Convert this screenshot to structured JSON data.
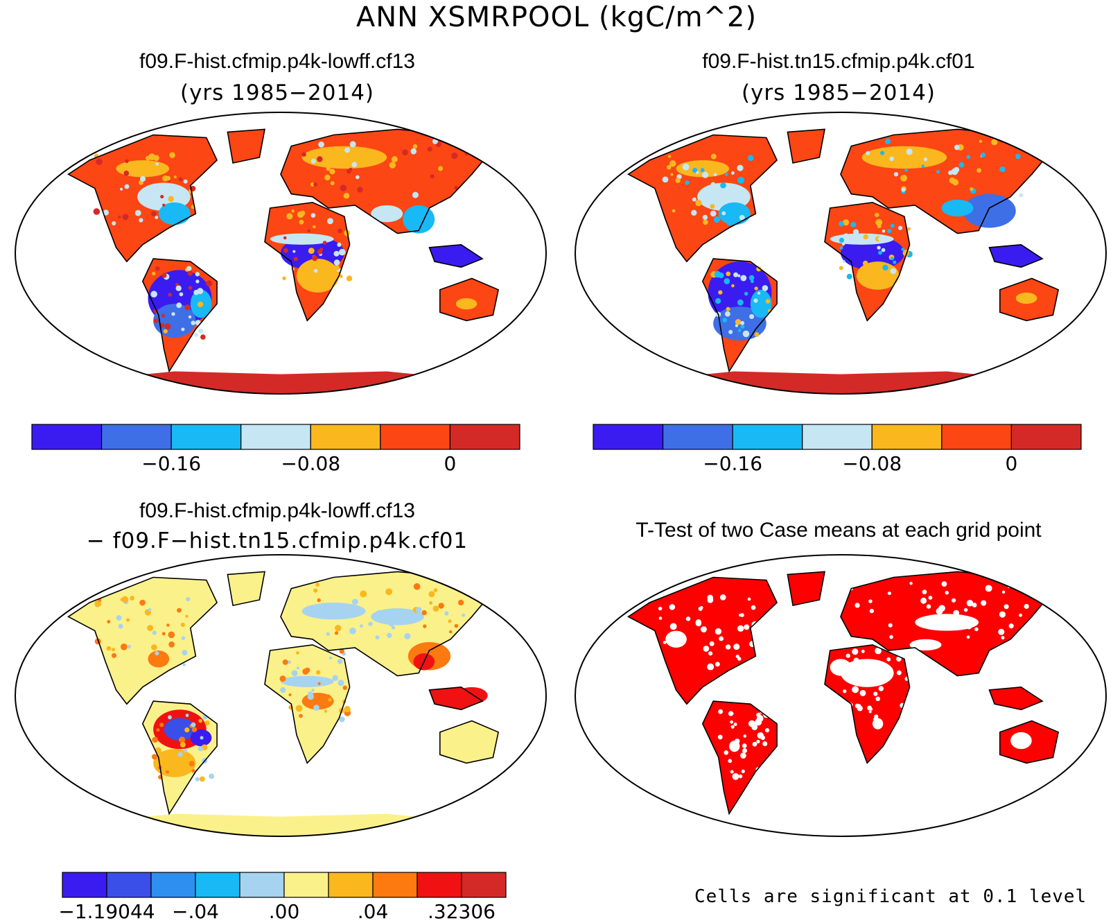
{
  "title": "ANN XSMRPOOL (kgC/m^2)",
  "panels": {
    "case1": {
      "title": "f09.F-hist.cfmip.p4k-lowff.cf13",
      "years": "(yrs 1985−2014)",
      "colorbar": {
        "colors": [
          "#3a1cf0",
          "#3e6fe6",
          "#18b9f4",
          "#c6e6f4",
          "#fab71e",
          "#fc4613",
          "#d42a27"
        ],
        "tick_labels": [
          "−0.16",
          "−0.08",
          "0"
        ]
      }
    },
    "case2": {
      "title": "f09.F-hist.tn15.cfmip.p4k.cf01",
      "years": "(yrs 1985−2014)",
      "colorbar": {
        "colors": [
          "#3a1cf0",
          "#3e6fe6",
          "#18b9f4",
          "#c6e6f4",
          "#fab71e",
          "#fc4613",
          "#d42a27"
        ],
        "tick_labels": [
          "−0.16",
          "−0.08",
          "0"
        ]
      }
    },
    "diff": {
      "title": "f09.F-hist.cfmip.p4k-lowff.cf13",
      "subtitle": "− f09.F−hist.tn15.cfmip.p4k.cf01",
      "colorbar": {
        "colors": [
          "#3a1cf0",
          "#3a4fe8",
          "#2f8ff0",
          "#18b9f4",
          "#a6d3f0",
          "#fbf18a",
          "#fab71e",
          "#fc7a10",
          "#f01212",
          "#d42a27"
        ],
        "tick_labels": [
          "−1.19044",
          "−.04",
          ".00",
          ".04",
          ".32306"
        ]
      }
    },
    "ttest": {
      "title": "T-Test of two Case means at each grid point",
      "note": "Cells are significant at 0.1 level",
      "significant_color": "#ff0000"
    }
  }
}
